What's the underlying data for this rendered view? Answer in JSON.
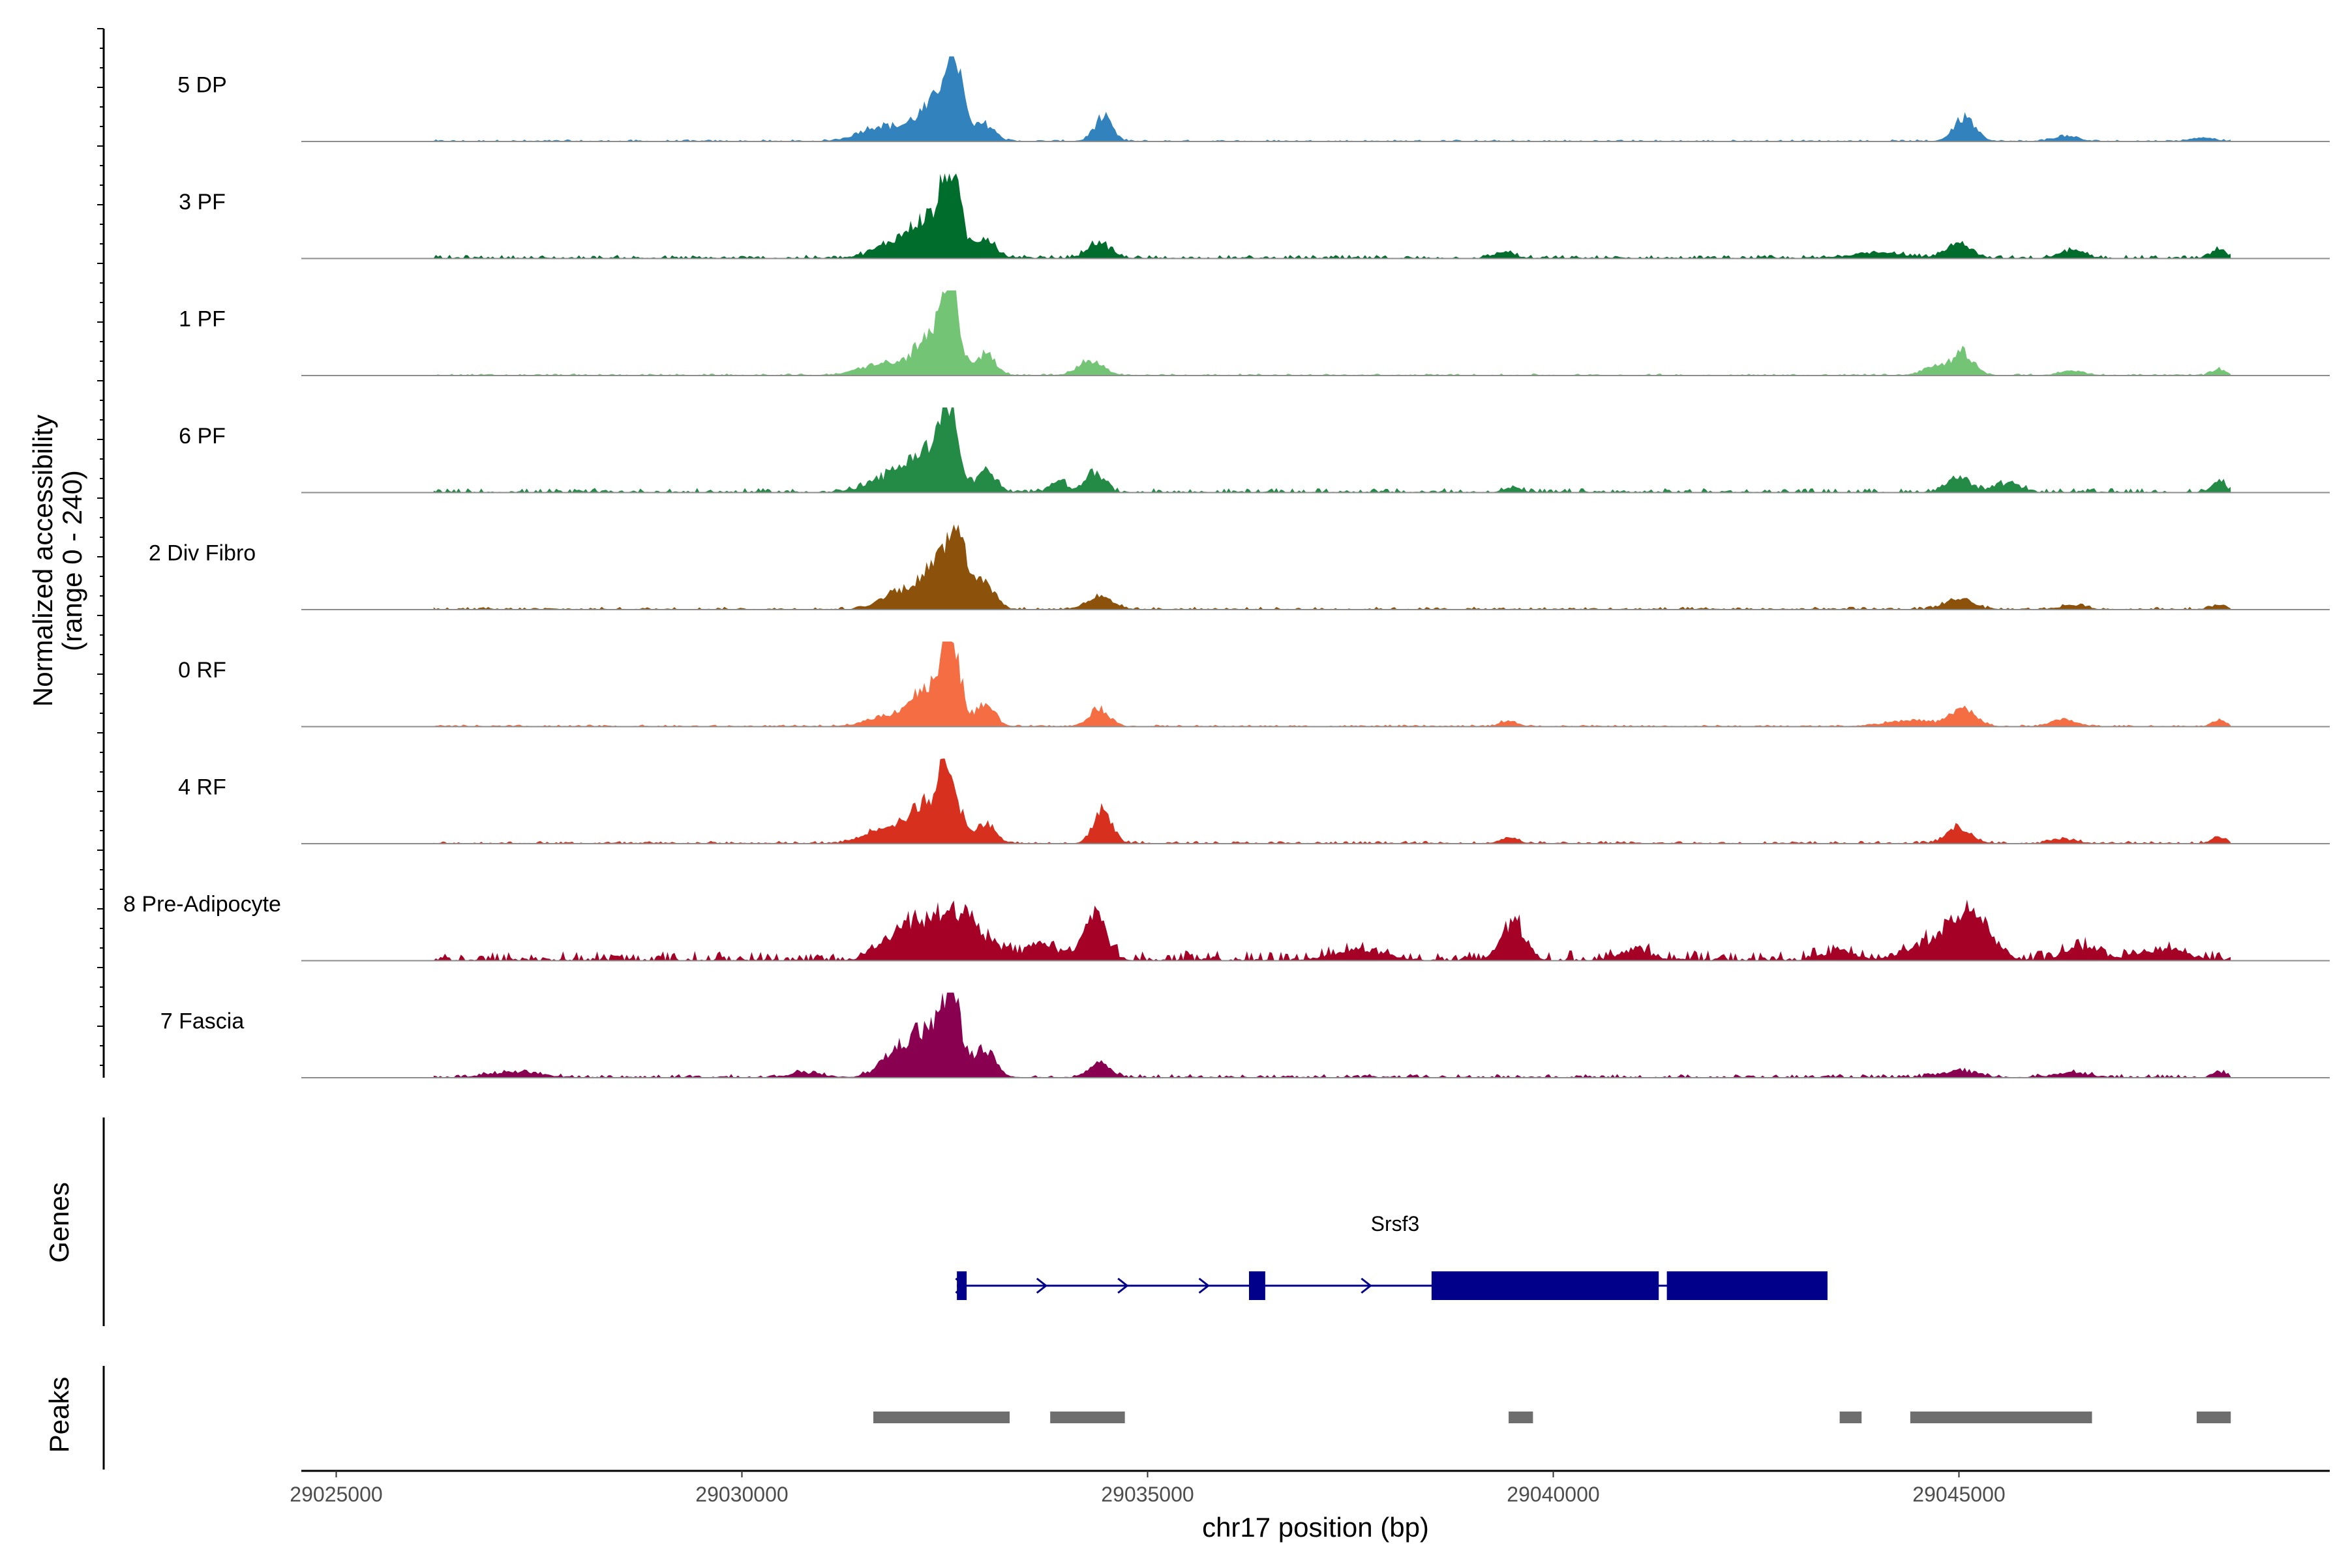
{
  "chart_data": {
    "type": "area",
    "title": "",
    "ylabel": "Normalized accessibility",
    "ylabel_range": "(range 0 - 240)",
    "y_range": [
      0,
      240
    ],
    "xlabel": "chr17 position (bp)",
    "x_range": [
      29024570,
      29049570
    ],
    "x_ticks": [
      29025000,
      29030000,
      29035000,
      29040000,
      29045000
    ],
    "tracks": [
      {
        "name": "5 DP",
        "color": "#3182bd",
        "peaks": [
          [
            29032600,
            0.95,
            110
          ],
          [
            29032350,
            0.4,
            220
          ],
          [
            29031700,
            0.18,
            250
          ],
          [
            29033000,
            0.2,
            120
          ],
          [
            29034450,
            0.28,
            110
          ],
          [
            29045070,
            0.28,
            130
          ],
          [
            29046300,
            0.06,
            150
          ],
          [
            29048000,
            0.04,
            150
          ]
        ],
        "noise": 0.02
      },
      {
        "name": "3 PF",
        "color": "#006d2c",
        "peaks": [
          [
            29032580,
            0.95,
            110
          ],
          [
            29032300,
            0.42,
            200
          ],
          [
            29031900,
            0.18,
            250
          ],
          [
            29033000,
            0.25,
            120
          ],
          [
            29034400,
            0.18,
            140
          ],
          [
            29039400,
            0.07,
            120
          ],
          [
            29045000,
            0.18,
            150
          ],
          [
            29044000,
            0.07,
            300
          ],
          [
            29046400,
            0.09,
            150
          ],
          [
            29048200,
            0.12,
            80
          ]
        ],
        "noise": 0.04
      },
      {
        "name": "1 PF",
        "color": "#74c476",
        "peaks": [
          [
            29032570,
            0.95,
            110
          ],
          [
            29032300,
            0.4,
            200
          ],
          [
            29031700,
            0.13,
            250
          ],
          [
            29033000,
            0.25,
            120
          ],
          [
            29034300,
            0.17,
            150
          ],
          [
            29045050,
            0.27,
            130
          ],
          [
            29044700,
            0.1,
            150
          ],
          [
            29046400,
            0.05,
            150
          ],
          [
            29048200,
            0.08,
            80
          ]
        ],
        "noise": 0.02
      },
      {
        "name": "6 PF",
        "color": "#238b45",
        "peaks": [
          [
            29032550,
            0.92,
            110
          ],
          [
            29032250,
            0.45,
            200
          ],
          [
            29031800,
            0.18,
            250
          ],
          [
            29033000,
            0.25,
            120
          ],
          [
            29034350,
            0.25,
            110
          ],
          [
            29033900,
            0.15,
            100
          ],
          [
            29039500,
            0.05,
            100
          ],
          [
            29045000,
            0.18,
            150
          ],
          [
            29045600,
            0.1,
            150
          ],
          [
            29048200,
            0.13,
            80
          ]
        ],
        "noise": 0.05
      },
      {
        "name": "2 Div Fibro",
        "color": "#8c510a",
        "peaks": [
          [
            29032650,
            0.97,
            120
          ],
          [
            29032350,
            0.45,
            200
          ],
          [
            29031900,
            0.18,
            200
          ],
          [
            29033000,
            0.33,
            120
          ],
          [
            29034400,
            0.14,
            160
          ],
          [
            29045000,
            0.13,
            160
          ],
          [
            29046400,
            0.05,
            150
          ],
          [
            29048200,
            0.06,
            80
          ]
        ],
        "noise": 0.03
      },
      {
        "name": "0 RF",
        "color": "#f46d43",
        "peaks": [
          [
            29032580,
            0.95,
            110
          ],
          [
            29032280,
            0.42,
            200
          ],
          [
            29031800,
            0.12,
            250
          ],
          [
            29033000,
            0.25,
            120
          ],
          [
            29034400,
            0.22,
            120
          ],
          [
            29039450,
            0.07,
            100
          ],
          [
            29045050,
            0.2,
            150
          ],
          [
            29044400,
            0.07,
            300
          ],
          [
            29046300,
            0.08,
            150
          ],
          [
            29048200,
            0.07,
            80
          ]
        ],
        "noise": 0.02
      },
      {
        "name": "4 RF",
        "color": "#d7301f",
        "peaks": [
          [
            29032560,
            0.8,
            110
          ],
          [
            29032300,
            0.45,
            200
          ],
          [
            29031800,
            0.2,
            250
          ],
          [
            29033000,
            0.25,
            120
          ],
          [
            29034450,
            0.42,
            110
          ],
          [
            29039450,
            0.07,
            100
          ],
          [
            29045000,
            0.18,
            150
          ],
          [
            29046300,
            0.05,
            150
          ],
          [
            29048200,
            0.08,
            80
          ]
        ],
        "noise": 0.03
      },
      {
        "name": "8 Pre-Adipocyte",
        "color": "#a50026",
        "peaks": [
          [
            29032600,
            0.55,
            350
          ],
          [
            29032000,
            0.3,
            250
          ],
          [
            29034350,
            0.55,
            140
          ],
          [
            29033700,
            0.18,
            200
          ],
          [
            29039500,
            0.45,
            140
          ],
          [
            29045150,
            0.6,
            220
          ],
          [
            29044600,
            0.2,
            250
          ],
          [
            29046500,
            0.15,
            200
          ],
          [
            29047500,
            0.12,
            300
          ],
          [
            29041000,
            0.12,
            200
          ],
          [
            29043500,
            0.1,
            200
          ],
          [
            29037600,
            0.12,
            300
          ]
        ],
        "noise": 0.12
      },
      {
        "name": "7 Fascia",
        "color": "#8a0051",
        "peaks": [
          [
            29032580,
            0.85,
            120
          ],
          [
            29032300,
            0.5,
            220
          ],
          [
            29031900,
            0.25,
            200
          ],
          [
            29033000,
            0.35,
            120
          ],
          [
            29034400,
            0.2,
            120
          ],
          [
            29027200,
            0.06,
            300
          ],
          [
            29030800,
            0.05,
            200
          ],
          [
            29045000,
            0.08,
            200
          ],
          [
            29046400,
            0.06,
            200
          ],
          [
            29048200,
            0.06,
            80
          ]
        ],
        "noise": 0.04
      }
    ],
    "genes_track": {
      "label": "Genes",
      "color": "#00008b",
      "gene_name": "Srsf3",
      "gene_start": 29032650,
      "gene_end": 29043380,
      "strand": "+",
      "exons": [
        [
          29032650,
          29032770
        ],
        [
          29036250,
          29036450
        ],
        [
          29038500,
          29041300
        ],
        [
          29041400,
          29043380
        ]
      ],
      "arrow_positions": [
        29032700,
        29033700,
        29034700,
        29035700,
        29037700
      ]
    },
    "peaks_track": {
      "label": "Peaks",
      "color": "#6e6e6e",
      "regions": [
        [
          29031620,
          29033300
        ],
        [
          29033800,
          29034720
        ],
        [
          29039450,
          29039750
        ],
        [
          29043530,
          29043800
        ],
        [
          29044400,
          29046640
        ],
        [
          29047930,
          29048350
        ]
      ]
    }
  }
}
